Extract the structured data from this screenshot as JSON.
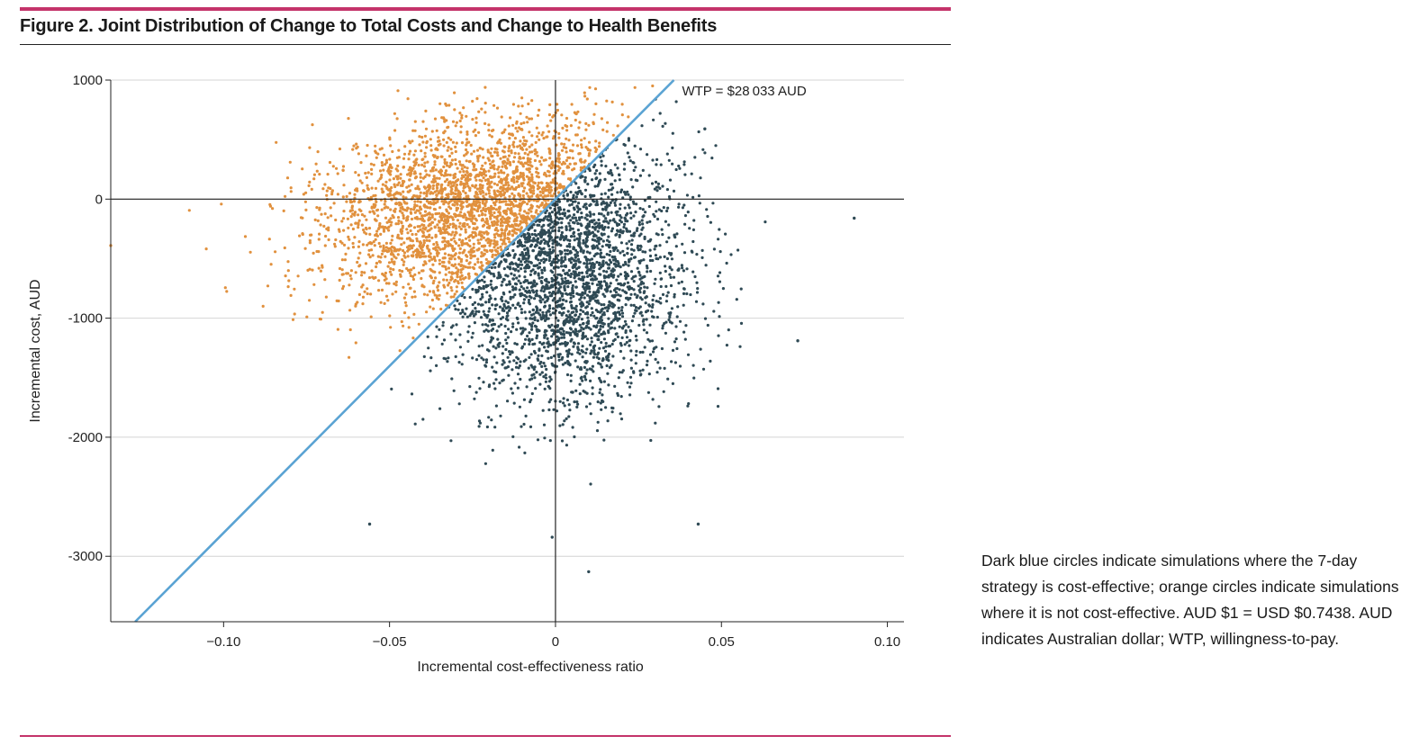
{
  "figure": {
    "title": "Figure 2. Joint Distribution of Change to Total Costs and Change to Health Benefits",
    "caption": "Dark blue circles indicate simulations where the 7-day strategy is cost-effective; orange circles indicate simulations where it is not cost-effective. AUD $1 = USD $0.7438. AUD indicates Australian dollar; WTP, willingness-to-pay."
  },
  "chart_data": {
    "type": "scatter",
    "title": "",
    "xlabel": "Incremental cost-effectiveness ratio",
    "ylabel": "Incremental cost, AUD",
    "xlim": [
      -0.134,
      0.105
    ],
    "ylim": [
      -3550,
      1000
    ],
    "xticks": [
      -0.1,
      -0.05,
      0,
      0.05,
      0.1
    ],
    "xtick_labels": [
      "−0.10",
      "−0.05",
      "0",
      "0.05",
      "0.10"
    ],
    "yticks": [
      1000,
      0,
      -1000,
      -2000,
      -3000
    ],
    "ytick_labels": [
      "1000",
      "0",
      "-1000",
      "-2000",
      "-3000"
    ],
    "grid": "horizontal",
    "wtp_line": {
      "label": "WTP = $28 033 AUD",
      "slope_aud_per_unit": 28033,
      "color": "#5aa3d3"
    },
    "series": [
      {
        "name": "Cost-effective (dark blue circles)",
        "color": "#2f4a55",
        "approx_n": 2600,
        "x_mean": 0.005,
        "x_sd": 0.018,
        "y_mean": -700,
        "y_sd": 520
      },
      {
        "name": "Not cost-effective (orange circles)",
        "color": "#e1913e",
        "approx_n": 2600,
        "x_mean": -0.027,
        "x_sd": 0.022,
        "y_mean": -80,
        "y_sd": 380
      }
    ],
    "notable_points": [
      {
        "x": 0.01,
        "y": -3130
      },
      {
        "x": -0.056,
        "y": -2730
      },
      {
        "x": 0.043,
        "y": -2730
      },
      {
        "x": -0.001,
        "y": -2840
      },
      {
        "x": 0.09,
        "y": -160
      },
      {
        "x": -0.134,
        "y": -390
      },
      {
        "x": 0.073,
        "y": -1190
      },
      {
        "x": 0.045,
        "y": 590
      }
    ]
  }
}
